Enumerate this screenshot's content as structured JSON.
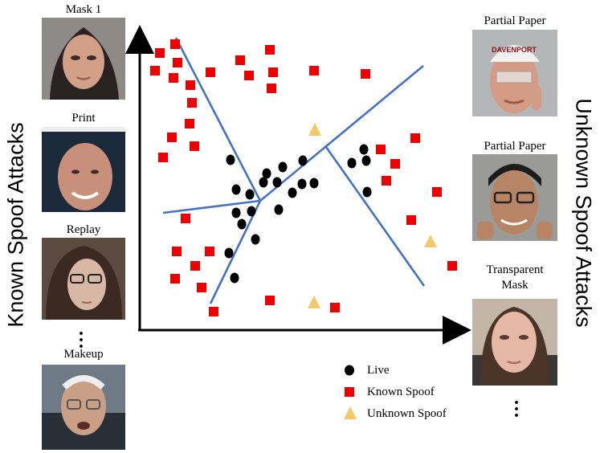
{
  "left_axis_title": "Known Spoof Attacks",
  "right_axis_title": "Unknown Spoof Attacks",
  "known_examples": [
    {
      "label": "Mask 1"
    },
    {
      "label": "Print"
    },
    {
      "label": "Replay"
    },
    {
      "label": "Makeup"
    }
  ],
  "unknown_examples": [
    {
      "label": "Partial Paper"
    },
    {
      "label": "Partial Paper"
    },
    {
      "label": "Transparent",
      "label2": "Mask"
    }
  ],
  "legend": {
    "live": "Live",
    "known": "Known Spoof",
    "unknown": "Unknown Spoof"
  },
  "colors": {
    "live": "#000000",
    "known": "#ee0000",
    "unknown": "#f5c96a",
    "boundary": "#4472c4"
  },
  "banner_text": "DAVENPORT"
}
